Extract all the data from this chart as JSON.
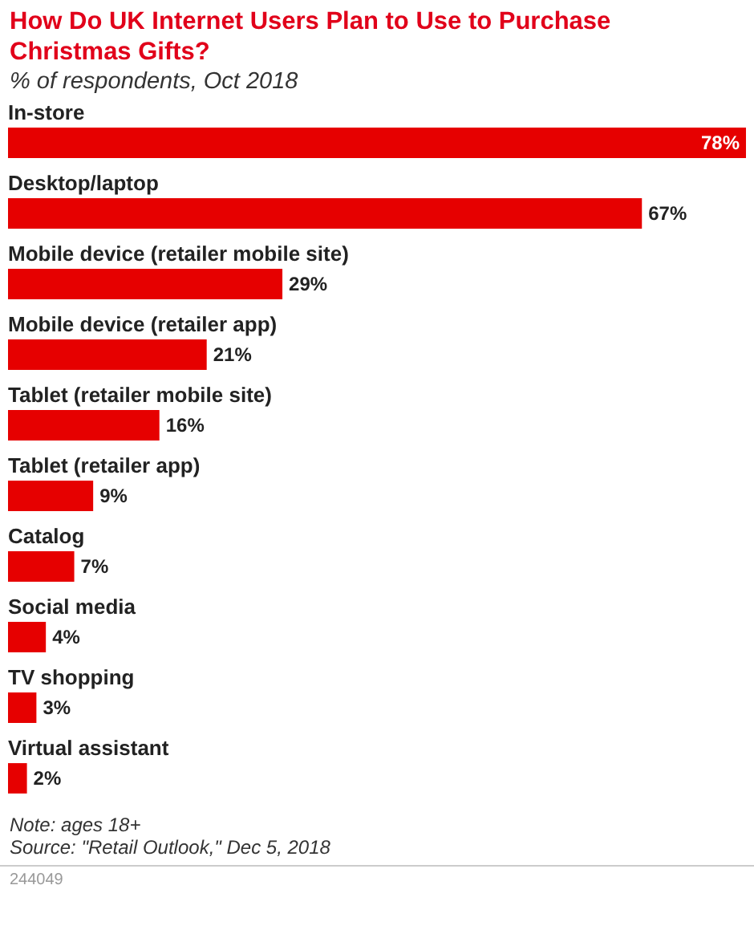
{
  "chart_data": {
    "type": "bar",
    "orientation": "horizontal",
    "title": "How Do UK Internet Users Plan to Use to Purchase Christmas Gifts?",
    "subtitle": "% of respondents, Oct 2018",
    "categories": [
      "In-store",
      "Desktop/laptop",
      "Mobile device (retailer mobile site)",
      "Mobile device (retailer app)",
      "Tablet (retailer mobile site)",
      "Tablet (retailer app)",
      "Catalog",
      "Social media",
      "TV shopping",
      "Virtual assistant"
    ],
    "values": [
      78,
      67,
      29,
      21,
      16,
      9,
      7,
      4,
      3,
      2
    ],
    "value_labels": [
      "78%",
      "67%",
      "29%",
      "21%",
      "16%",
      "9%",
      "7%",
      "4%",
      "3%",
      "2%"
    ],
    "color": "#e60000",
    "annotations": [
      "Note: ages 18+",
      "Source: \"Retail Outlook,\" Dec 5, 2018",
      "244049"
    ]
  }
}
